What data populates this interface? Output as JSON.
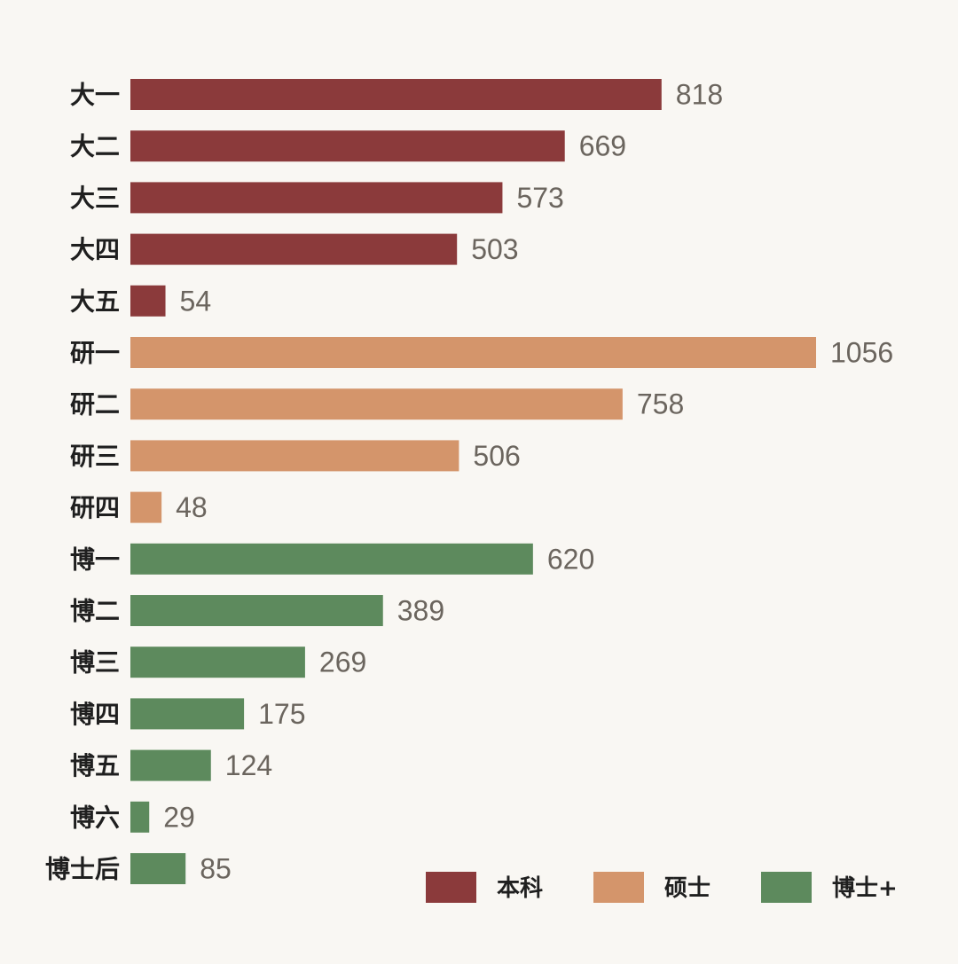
{
  "colors": {
    "background": "#f9f7f3",
    "本科": "#8b3a3b",
    "硕士": "#d4956b",
    "博士+": "#5d8a5d"
  },
  "chart_data": {
    "type": "bar",
    "orientation": "horizontal",
    "title": "",
    "xlabel": "",
    "ylabel": "",
    "grid": false,
    "legend_position": "bottom-right",
    "xlim": [
      0,
      1056
    ],
    "legend": [
      "本科",
      "硕士",
      "博士+"
    ],
    "categories": [
      "大一",
      "大二",
      "大三",
      "大四",
      "大五",
      "研一",
      "研二",
      "研三",
      "研四",
      "博一",
      "博二",
      "博三",
      "博四",
      "博五",
      "博六",
      "博士后"
    ],
    "values": [
      818,
      669,
      573,
      503,
      54,
      1056,
      758,
      506,
      48,
      620,
      389,
      269,
      175,
      124,
      29,
      85
    ],
    "groups": [
      "本科",
      "本科",
      "本科",
      "本科",
      "本科",
      "硕士",
      "硕士",
      "硕士",
      "硕士",
      "博士+",
      "博士+",
      "博士+",
      "博士+",
      "博士+",
      "博士+",
      "博士+"
    ]
  }
}
